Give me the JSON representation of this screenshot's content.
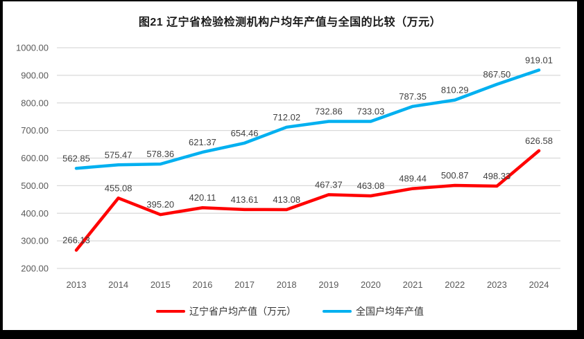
{
  "chart_data": {
    "type": "line",
    "title": "图21 辽宁省检验检测机构户均年产值与全国的比较（万元）",
    "categories": [
      "2013",
      "2014",
      "2015",
      "2016",
      "2017",
      "2018",
      "2019",
      "2020",
      "2021",
      "2022",
      "2023",
      "2024"
    ],
    "series": [
      {
        "name": "辽宁省户均产值（万元）",
        "color": "#FF0000",
        "values": [
          266.13,
          455.08,
          395.2,
          420.11,
          413.61,
          413.08,
          467.37,
          463.08,
          489.44,
          500.87,
          498.33,
          626.58
        ]
      },
      {
        "name": "全国户均年产值",
        "color": "#00B0F0",
        "values": [
          562.85,
          575.47,
          578.36,
          621.37,
          654.46,
          712.02,
          732.86,
          733.03,
          787.35,
          810.29,
          867.5,
          919.01
        ]
      }
    ],
    "y_axis": {
      "min": 200,
      "max": 1000,
      "step": 100,
      "tick_labels": [
        "200.00",
        "300.00",
        "400.00",
        "500.00",
        "600.00",
        "700.00",
        "800.00",
        "900.00",
        "1000.00"
      ]
    },
    "xlabel": "",
    "ylabel": "",
    "grid": true,
    "data_labels": true,
    "legend_position": "bottom",
    "colors": {
      "gridline": "#D9D9D9",
      "axis_text": "#595959",
      "data_label_text": "#404040"
    }
  }
}
